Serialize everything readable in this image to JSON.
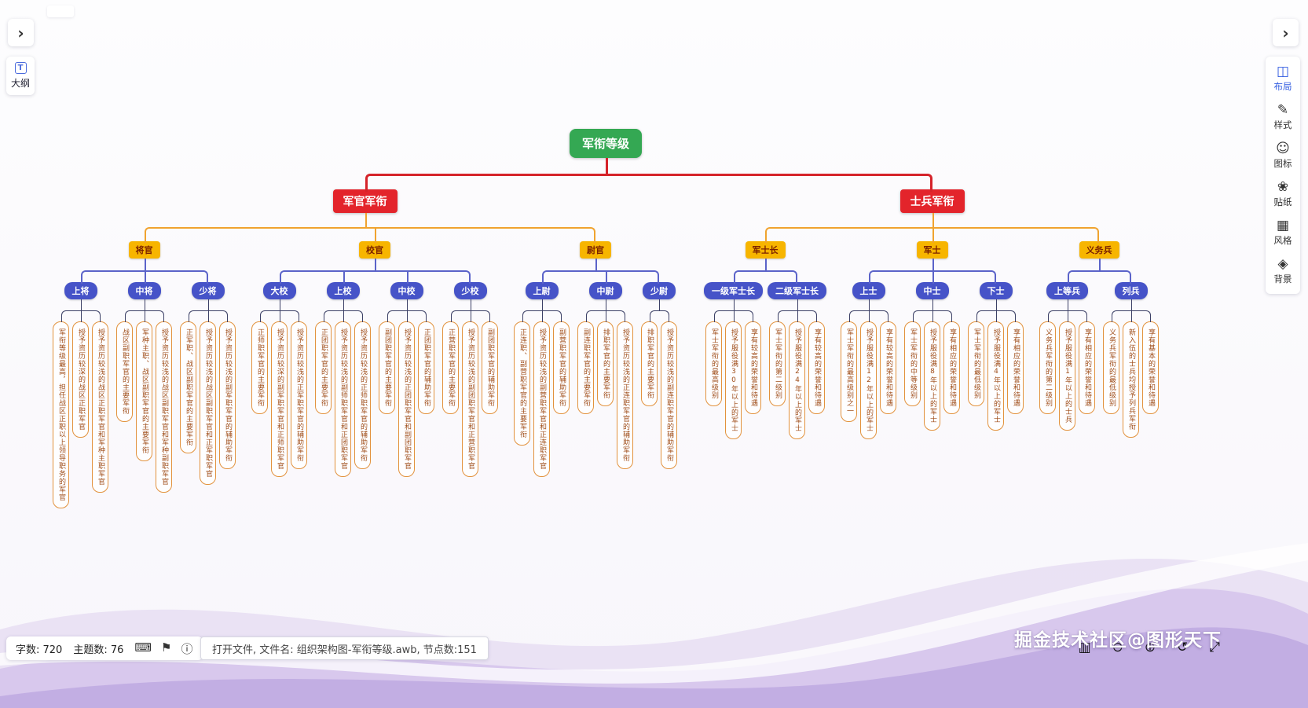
{
  "left_panel": {
    "outline_label": "大纲"
  },
  "right_panel": {
    "items": [
      {
        "label": "布局",
        "icon": "layout",
        "active": true
      },
      {
        "label": "样式",
        "icon": "style",
        "active": false
      },
      {
        "label": "图标",
        "icon": "icons",
        "active": false
      },
      {
        "label": "贴纸",
        "icon": "stickers",
        "active": false
      },
      {
        "label": "风格",
        "icon": "theme",
        "active": false
      },
      {
        "label": "背景",
        "icon": "background",
        "active": false
      }
    ]
  },
  "status_bar": {
    "word_count": "字数: 720",
    "topic_count": "主题数: 76"
  },
  "toast": {
    "message": "打开文件, 文件名: 组织架构图-军衔等级.awb, 节点数:151"
  },
  "watermark": "掘金技术社区@图形天下",
  "colors": {
    "root": "#34a853",
    "branch": "#e3242b",
    "category_bg": "#f7b500",
    "category_text": "#7a2000",
    "rank": "#4653c8",
    "leaf_border": "#e2923d",
    "leaf_text": "#a04f1b",
    "connector_l1": "#d5232a",
    "connector_l2": "#f0a32f",
    "connector_l3": "#5b63c9",
    "connector_l4": "#3c4066"
  },
  "mindmap": {
    "label": "军衔等级",
    "children": [
      {
        "label": "军官军衔",
        "children": [
          {
            "label": "将官",
            "children": [
              {
                "label": "上将",
                "children": [
                  {
                    "label": "军衔等级最高，担任战区正职以上领导职务的军官"
                  },
                  {
                    "label": "授予资历较深的战区正职军官"
                  },
                  {
                    "label": "授予资历较浅的战区正职军官和军种主职军官"
                  }
                ]
              },
              {
                "label": "中将",
                "children": [
                  {
                    "label": "战区副职军官的主要军衔"
                  },
                  {
                    "label": "军种主职、战区副职军官的主要军衔"
                  },
                  {
                    "label": "授予资历较浅的战区副职军官和军种副职军官"
                  }
                ]
              },
              {
                "label": "少将",
                "children": [
                  {
                    "label": "正军职、战区副职军官的主要军衔"
                  },
                  {
                    "label": "授予资历较浅的战区副职军官和正军职军官"
                  },
                  {
                    "label": "授予资历较浅的副军职军官的辅助军衔"
                  }
                ]
              }
            ]
          },
          {
            "label": "校官",
            "children": [
              {
                "label": "大校",
                "children": [
                  {
                    "label": "正师职军官的主要军衔"
                  },
                  {
                    "label": "授予资历较深的副军职军官和正师职军官"
                  },
                  {
                    "label": "授予资历较浅的正军职军官的辅助军衔"
                  }
                ]
              },
              {
                "label": "上校",
                "children": [
                  {
                    "label": "正团职军官的主要军衔"
                  },
                  {
                    "label": "授予资历较浅的副师职军官和正团职军官"
                  },
                  {
                    "label": "授予资历较浅的正师职军官的辅助军衔"
                  }
                ]
              },
              {
                "label": "中校",
                "children": [
                  {
                    "label": "副团职军官的主要军衔"
                  },
                  {
                    "label": "授予资历较浅的正团职军官和副团职军官"
                  },
                  {
                    "label": "正团职军官的辅助军衔"
                  }
                ]
              },
              {
                "label": "少校",
                "children": [
                  {
                    "label": "正营职军官的主要军衔"
                  },
                  {
                    "label": "授予资历较浅的副团职军官和正营职军官"
                  },
                  {
                    "label": "副团职军官的辅助军衔"
                  }
                ]
              }
            ]
          },
          {
            "label": "尉官",
            "children": [
              {
                "label": "上尉",
                "children": [
                  {
                    "label": "正连职、副营职军官的主要军衔"
                  },
                  {
                    "label": "授予资历较浅的副营职军官和正连职军官"
                  },
                  {
                    "label": "副营职军官的辅助军衔"
                  }
                ]
              },
              {
                "label": "中尉",
                "children": [
                  {
                    "label": "副连职军官的主要军衔"
                  },
                  {
                    "label": "排职军官的主要军衔"
                  },
                  {
                    "label": "授予资历较浅的正连职军官的辅助军衔"
                  }
                ]
              },
              {
                "label": "少尉",
                "children": [
                  {
                    "label": "排职军官的主要军衔"
                  },
                  {
                    "label": "授予资历较浅的副连职军官的辅助军衔"
                  }
                ]
              }
            ]
          }
        ]
      },
      {
        "label": "士兵军衔",
        "children": [
          {
            "label": "军士长",
            "children": [
              {
                "label": "一级军士长",
                "children": [
                  {
                    "label": "军士军衔的最高级别"
                  },
                  {
                    "label": "授予服役满30年以上的军士"
                  },
                  {
                    "label": "享有较高的荣誉和待遇"
                  }
                ]
              },
              {
                "label": "二级军士长",
                "children": [
                  {
                    "label": "军士军衔的第二级别"
                  },
                  {
                    "label": "授予服役满24年以上的军士"
                  },
                  {
                    "label": "享有较高的荣誉和待遇"
                  }
                ]
              }
            ]
          },
          {
            "label": "军士",
            "children": [
              {
                "label": "上士",
                "children": [
                  {
                    "label": "军士军衔的最高级别之一"
                  },
                  {
                    "label": "授予服役满12年以上的军士"
                  },
                  {
                    "label": "享有较高的荣誉和待遇"
                  }
                ]
              },
              {
                "label": "中士",
                "children": [
                  {
                    "label": "军士军衔的中等级别"
                  },
                  {
                    "label": "授予服役满8年以上的军士"
                  },
                  {
                    "label": "享有相应的荣誉和待遇"
                  }
                ]
              },
              {
                "label": "下士",
                "children": [
                  {
                    "label": "军士军衔的最低级别"
                  },
                  {
                    "label": "授予服役满4年以上的军士"
                  },
                  {
                    "label": "享有相应的荣誉和待遇"
                  }
                ]
              }
            ]
          },
          {
            "label": "义务兵",
            "children": [
              {
                "label": "上等兵",
                "children": [
                  {
                    "label": "义务兵军衔的第二级别"
                  },
                  {
                    "label": "授予服役满1年以上的士兵"
                  },
                  {
                    "label": "享有相应的荣誉和待遇"
                  }
                ]
              },
              {
                "label": "列兵",
                "children": [
                  {
                    "label": "义务兵军衔的最低级别"
                  },
                  {
                    "label": "新入伍的士兵均授予列兵军衔"
                  },
                  {
                    "label": "享有基本的荣誉和待遇"
                  }
                ]
              }
            ]
          }
        ]
      }
    ]
  }
}
